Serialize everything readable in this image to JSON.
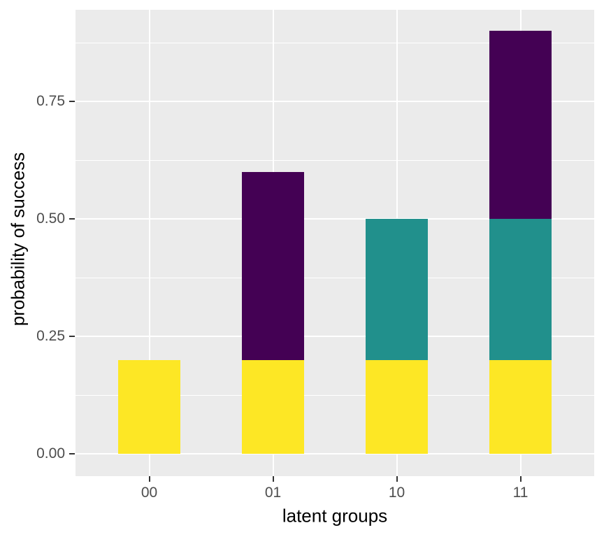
{
  "chart_data": {
    "type": "bar",
    "stacked": true,
    "title": "",
    "xlabel": "latent groups",
    "ylabel": "probability of success",
    "categories": [
      "00",
      "01",
      "10",
      "11"
    ],
    "series": [
      {
        "name": "yellow-segment",
        "color": "#FDE725",
        "values": [
          0.2,
          0.2,
          0.2,
          0.2
        ]
      },
      {
        "name": "teal-segment",
        "color": "#21908C",
        "values": [
          0.0,
          0.0,
          0.3,
          0.3
        ]
      },
      {
        "name": "purple-segment",
        "color": "#440154",
        "values": [
          0.0,
          0.4,
          0.0,
          0.4
        ]
      }
    ],
    "totals": [
      0.2,
      0.6,
      0.5,
      0.9
    ],
    "y_axis": {
      "tick_labels": [
        "0.00",
        "0.25",
        "0.50",
        "0.75"
      ],
      "tick_values": [
        0.0,
        0.25,
        0.5,
        0.75
      ],
      "minor_tick_values": [
        0.125,
        0.375,
        0.625,
        0.875
      ],
      "ylim": [
        -0.045,
        0.945
      ]
    },
    "x_axis": {
      "tick_labels": [
        "00",
        "01",
        "10",
        "11"
      ]
    },
    "legend": "none",
    "grid": "on",
    "style": {
      "figure_bg": "#FFFFFF",
      "panel_bg": "#EBEBEB",
      "grid_color": "#FFFFFF",
      "tick_label_color": "#4D4D4D",
      "tick_mark_color": "#333333",
      "axis_title_color": "#000000"
    }
  }
}
